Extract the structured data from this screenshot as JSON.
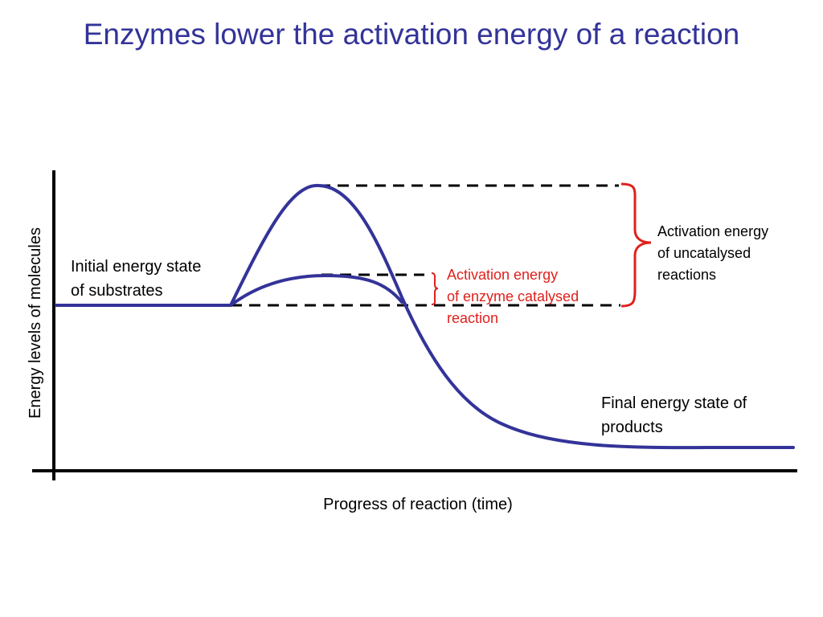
{
  "title": "Enzymes lower the activation energy of a reaction",
  "axes": {
    "y_label": "Energy levels of molecules",
    "x_label": "Progress of reaction (time)"
  },
  "labels": {
    "initial_state": [
      "Initial energy state",
      "of substrates"
    ],
    "final_state": [
      "Final energy state of",
      "products"
    ],
    "uncatalysed": [
      "Activation energy",
      "of uncatalysed",
      "reactions"
    ],
    "catalysed": [
      "Activation energy",
      "of enzyme catalysed",
      "reaction"
    ]
  },
  "colors": {
    "title": "#333399",
    "curve": "#333399",
    "catalysed_annotation": "#e0201c",
    "uncatalysed_brace": "#e0201c",
    "axes": "#000000"
  }
}
